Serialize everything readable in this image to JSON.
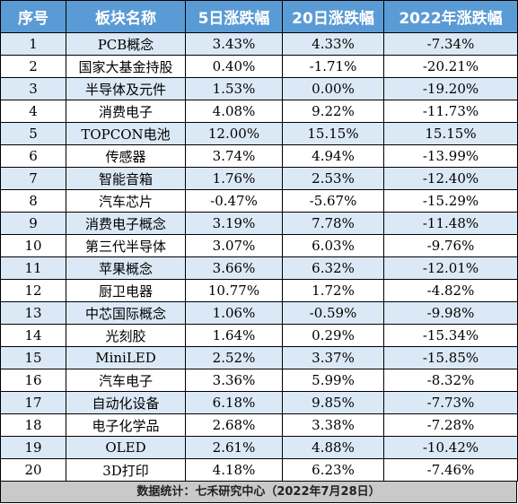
{
  "table": {
    "headers": [
      "序号",
      "板块名称",
      "5日涨跌幅",
      "20日涨跌幅",
      "2022年涨跌幅"
    ],
    "rows": [
      [
        "1",
        "PCB概念",
        "3.43%",
        "4.33%",
        "-7.34%"
      ],
      [
        "2",
        "国家大基金持股",
        "0.40%",
        "-1.71%",
        "-20.21%"
      ],
      [
        "3",
        "半导体及元件",
        "1.53%",
        "0.00%",
        "-19.20%"
      ],
      [
        "4",
        "消费电子",
        "4.08%",
        "9.22%",
        "-11.73%"
      ],
      [
        "5",
        "TOPCON电池",
        "12.00%",
        "15.15%",
        "15.15%"
      ],
      [
        "6",
        "传感器",
        "3.74%",
        "4.94%",
        "-13.99%"
      ],
      [
        "7",
        "智能音箱",
        "1.76%",
        "2.53%",
        "-12.40%"
      ],
      [
        "8",
        "汽车芯片",
        "-0.47%",
        "-5.67%",
        "-15.29%"
      ],
      [
        "9",
        "消费电子概念",
        "3.19%",
        "7.78%",
        "-11.48%"
      ],
      [
        "10",
        "第三代半导体",
        "3.07%",
        "6.03%",
        "-9.76%"
      ],
      [
        "11",
        "苹果概念",
        "3.66%",
        "6.32%",
        "-12.01%"
      ],
      [
        "12",
        "厨卫电器",
        "10.77%",
        "1.72%",
        "-4.82%"
      ],
      [
        "13",
        "中芯国际概念",
        "1.06%",
        "-0.59%",
        "-9.98%"
      ],
      [
        "14",
        "光刻胶",
        "1.64%",
        "0.29%",
        "-15.34%"
      ],
      [
        "15",
        "MiniLED",
        "2.52%",
        "3.37%",
        "-15.85%"
      ],
      [
        "16",
        "汽车电子",
        "3.36%",
        "5.99%",
        "-8.32%"
      ],
      [
        "17",
        "自动化设备",
        "6.18%",
        "9.85%",
        "-7.73%"
      ],
      [
        "18",
        "电子化学品",
        "2.68%",
        "3.38%",
        "-7.28%"
      ],
      [
        "19",
        "OLED",
        "2.61%",
        "4.88%",
        "-10.42%"
      ],
      [
        "20",
        "3D打印",
        "4.18%",
        "6.23%",
        "-7.46%"
      ]
    ]
  },
  "footer": {
    "source": "数据统计：七禾研究中心（2022年7月28日）"
  },
  "colors": {
    "header_bg": "#5b9bd5",
    "header_text": "#ffffff",
    "odd_row_bg": "#dbe9f6",
    "even_row_bg": "#ffffff",
    "footer_bg": "#c9c9c9"
  }
}
